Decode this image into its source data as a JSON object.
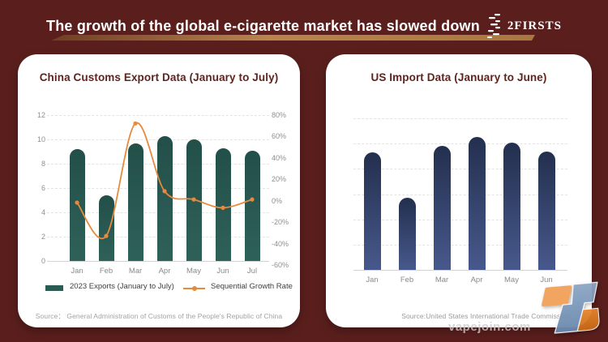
{
  "header": {
    "title": "The growth of the global e-cigarette market has slowed down",
    "brand": "2FIRSTS"
  },
  "colors": {
    "background": "#5A1F1D",
    "card": "#FFFFFF",
    "chart_title_text": "#60241F",
    "export_bar_top": "#234F49",
    "export_bar_bottom": "#2E6159",
    "import_bar_top": "#232F4E",
    "import_bar_bottom": "#47598C",
    "growth_line": "#E78A3D",
    "header_swoosh": "#B9854F",
    "gridline": "#E3E3E3",
    "axis_text": "#8F8F8F",
    "logo_orange_light": "#F2A158",
    "logo_orange_dark": "#D9741F",
    "logo_blue": "#7693B6"
  },
  "left_card": {
    "title": "China Customs Export Data (January to July)",
    "y_left_ticks": [
      "12",
      "10",
      "8",
      "6",
      "4",
      "2",
      "0"
    ],
    "y_right_ticks": [
      "80%",
      "60%",
      "40%",
      "20%",
      "0%",
      "-20%",
      "-40%",
      "-60%"
    ],
    "months": [
      "Jan",
      "Feb",
      "Mar",
      "Apr",
      "May",
      "Jun",
      "Jul"
    ],
    "legend": {
      "bar_label": "2023 Exports (January to July)",
      "line_label": "Sequential Growth Rate"
    },
    "source": "Source： General Administration of Customs of the People's Republic of China"
  },
  "right_card": {
    "title": "US Import Data (January to June)",
    "months": [
      "Jan",
      "Feb",
      "Mar",
      "Apr",
      "May",
      "Jun"
    ],
    "source": "Source:United States International Trade Commission"
  },
  "watermark": {
    "text": "vapejoin.com"
  },
  "chart_data": [
    {
      "type": "bar",
      "title": "China Customs Export Data (January to July)",
      "categories": [
        "Jan",
        "Feb",
        "Mar",
        "Apr",
        "May",
        "Jun",
        "Jul"
      ],
      "series": [
        {
          "name": "2023 Exports (January to July)",
          "type": "bar",
          "yaxis": "left",
          "values": [
            9.2,
            5.4,
            9.7,
            10.3,
            10.0,
            9.3,
            9.1
          ]
        },
        {
          "name": "Sequential Growth Rate",
          "type": "line",
          "yaxis": "right",
          "unit": "%",
          "values": [
            -4,
            -36,
            72,
            7,
            -1,
            -9,
            -1
          ]
        }
      ],
      "left_axis": {
        "min": 0,
        "max": 12,
        "step": 2
      },
      "right_axis": {
        "min": -60,
        "max": 80,
        "step": 20,
        "unit": "%"
      },
      "grid": "horizontal-dashed",
      "legend_position": "bottom",
      "note": "series values estimated from bar heights and line marker positions"
    },
    {
      "type": "bar",
      "title": "US Import Data (January to June)",
      "categories": [
        "Jan",
        "Feb",
        "Mar",
        "Apr",
        "May",
        "Jun"
      ],
      "values": [
        4.65,
        2.85,
        4.9,
        5.25,
        5.05,
        4.7
      ],
      "grid": "horizontal-dashed",
      "note": "y-axis is unlabeled in the image; values are relative gridline units"
    }
  ]
}
